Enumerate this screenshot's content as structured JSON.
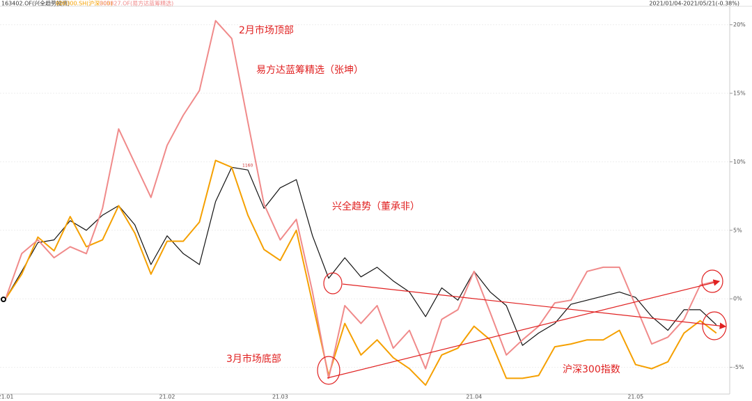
{
  "chart_data": {
    "type": "line",
    "header_right": "2021/01/04-2021/05/21(-0.38%)",
    "categories": [
      "21.01",
      null,
      null,
      null,
      null,
      null,
      null,
      null,
      null,
      null,
      "21.02",
      null,
      null,
      null,
      null,
      null,
      null,
      "21.03",
      null,
      null,
      null,
      null,
      null,
      null,
      null,
      null,
      null,
      null,
      null,
      "21.04",
      null,
      null,
      null,
      null,
      null,
      null,
      null,
      null,
      null,
      "21.05",
      null,
      null,
      null,
      null,
      null
    ],
    "series": [
      {
        "name": "163402.OF(兴全趋势投资)",
        "color": "#111111",
        "values": [
          0,
          2.0,
          4.1,
          4.3,
          5.7,
          5.0,
          6.1,
          6.8,
          5.4,
          2.5,
          4.6,
          3.3,
          2.5,
          7.1,
          9.6,
          9.4,
          6.6,
          8.1,
          8.7,
          4.6,
          1.5,
          3.0,
          1.6,
          2.3,
          1.3,
          0.5,
          -1.3,
          0.8,
          -0.1,
          2.0,
          0.5,
          -0.5,
          -3.4,
          -2.5,
          -1.8,
          -0.4,
          -0.1,
          0.2,
          0.5,
          0.1,
          -1.3,
          -2.3,
          -0.8,
          -0.8,
          -1.9
        ]
      },
      {
        "name": "000300.SH(沪深300)",
        "color": "#f5a000",
        "values": [
          0,
          1.8,
          4.5,
          3.5,
          6.0,
          3.8,
          4.3,
          6.8,
          4.8,
          1.8,
          4.2,
          4.2,
          5.6,
          10.1,
          9.6,
          6.1,
          3.6,
          2.8,
          5.0,
          -0.3,
          -5.6,
          -1.8,
          -4.1,
          -3.0,
          -4.3,
          -5.1,
          -6.3,
          -4.1,
          -3.6,
          -2.0,
          -3.0,
          -5.8,
          -5.8,
          -5.6,
          -3.5,
          -3.3,
          -3.0,
          -3.0,
          -2.3,
          -4.8,
          -5.1,
          -4.6,
          -2.5,
          -1.6,
          -2.5
        ]
      },
      {
        "name": "005827.OF(易方达蓝筹精选)",
        "color": "#f08a8a",
        "values": [
          0,
          3.3,
          4.3,
          3.0,
          3.8,
          3.3,
          6.6,
          12.4,
          9.9,
          7.4,
          11.2,
          13.4,
          15.2,
          20.3,
          19.0,
          12.9,
          6.9,
          4.3,
          5.8,
          0.5,
          -5.8,
          -0.5,
          -1.8,
          -0.5,
          -3.6,
          -2.3,
          -5.1,
          -1.5,
          -0.8,
          2.0,
          -1.0,
          -4.1,
          -3.0,
          -2.0,
          -0.3,
          -0.1,
          2.0,
          2.3,
          2.3,
          -0.5,
          -3.3,
          -2.8,
          -1.5,
          1.0,
          1.3
        ]
      }
    ],
    "ylim": [
      -6.9,
      21.3
    ],
    "yticks": [
      {
        "value": -5,
        "label": "-5%"
      },
      {
        "value": 0,
        "label": "0%"
      },
      {
        "value": 5,
        "label": "5%"
      },
      {
        "value": 10,
        "label": "10%"
      },
      {
        "value": 15,
        "label": "15%"
      },
      {
        "value": 20,
        "label": "20%"
      }
    ],
    "grid": true,
    "annotations": [
      "2月市场顶部",
      "易方达蓝筹精选（张坤）",
      "兴全趋势（董承非）",
      "3月市场底部",
      "沪深300指数",
      "1160"
    ]
  }
}
